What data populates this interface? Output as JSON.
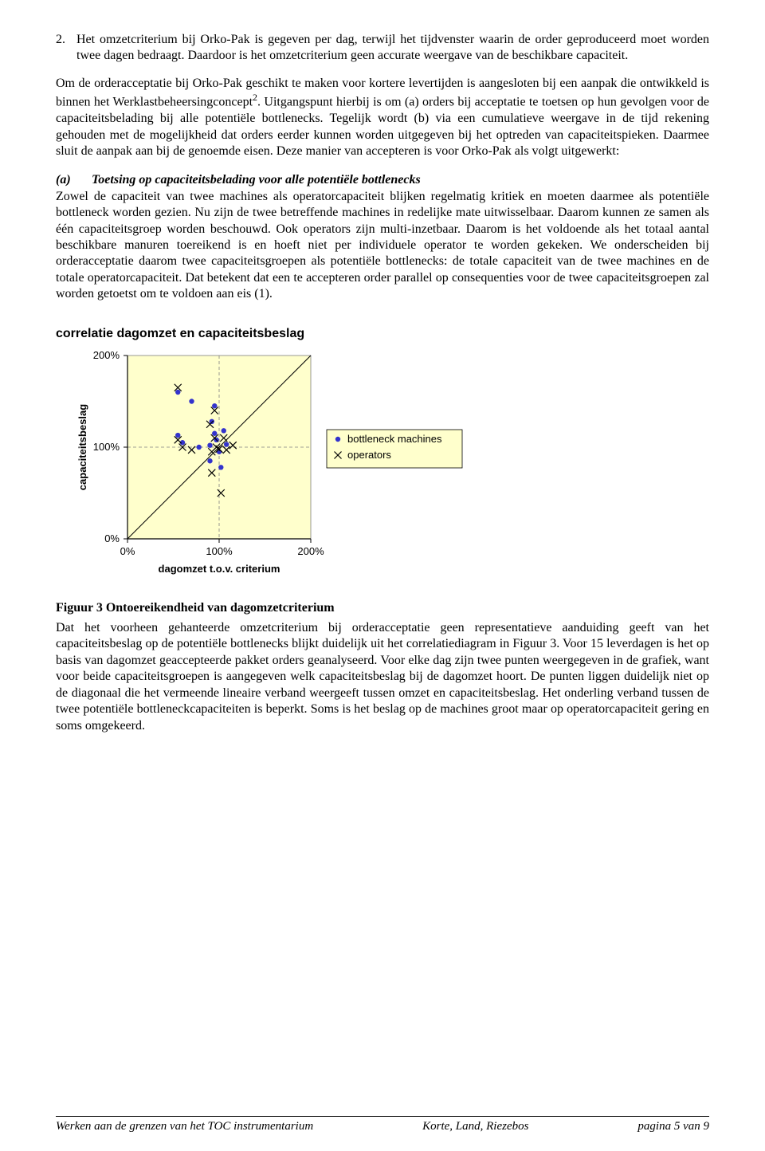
{
  "list_item_number": "2.",
  "list_item_text": "Het omzetcriterium bij Orko-Pak is gegeven per dag, terwijl het tijdvenster waarin de order geproduceerd moet worden twee dagen bedraagt. Daardoor is het omzetcriterium geen accurate weergave van de beschikbare capaciteit.",
  "para2_a": "Om de orderacceptatie bij Orko-Pak geschikt te maken voor kortere levertijden is aangesloten bij een aanpak die ontwikkeld is binnen het Werklastbeheersingconcept",
  "para2_sup": "2",
  "para2_b": ". Uitgangspunt hierbij is om (a) orders bij acceptatie te toetsen op hun gevolgen voor de capaciteitsbelading bij alle potentiële bottlenecks. Tegelijk wordt (b) via een cumulatieve weergave in de tijd rekening gehouden met de mogelijkheid dat orders eerder kunnen worden uitgegeven bij het optreden van capaciteitspieken. Daarmee sluit de aanpak aan bij de genoemde eisen. Deze manier van accepteren is voor Orko-Pak als volgt uitgewerkt:",
  "section_a_label": "(a)",
  "section_a_title": "Toetsing op capaciteitsbelading voor alle potentiële bottlenecks",
  "para3": "Zowel de capaciteit van twee machines als operatorcapaciteit blijken regelmatig kritiek en moeten daarmee als potentiële bottleneck worden gezien. Nu zijn de twee betreffende machines in redelijke mate uitwisselbaar. Daarom kunnen ze samen als één capaciteitsgroep worden beschouwd. Ook operators zijn multi-inzetbaar. Daarom is het voldoende als het totaal aantal beschikbare manuren toereikend is en hoeft niet per individuele operator te worden gekeken. We onderscheiden bij orderacceptatie daarom twee capaciteitsgroepen als potentiële bottlenecks: de totale capaciteit van de twee machines en de totale operatorcapaciteit. Dat betekent dat een te accepteren order parallel op consequenties voor de twee capaciteitsgroepen zal worden getoetst om te voldoen aan eis (1).",
  "chart": {
    "type": "scatter",
    "title": "correlatie dagomzet en capaciteitsbeslag",
    "xlabel": "dagomzet t.o.v. criterium",
    "ylabel": "capaciteitsbeslag",
    "xlim": [
      0,
      200
    ],
    "ylim": [
      0,
      200
    ],
    "xticks": [
      0,
      100,
      200
    ],
    "yticks": [
      0,
      100,
      200
    ],
    "xtick_labels": [
      "0%",
      "100%",
      "200%"
    ],
    "ytick_labels": [
      "0%",
      "100%",
      "200%"
    ],
    "plot_bg": "#ffffcc",
    "grid_color": "#808080",
    "axis_color": "#000000",
    "label_font": "Arial",
    "label_fontsize": 13,
    "tick_fontsize": 13,
    "ylabel_fontweight": "bold",
    "diagonal_line": {
      "x1": 0,
      "y1": 0,
      "x2": 200,
      "y2": 200,
      "color": "#000000",
      "width": 1
    },
    "legend": {
      "bg": "#ffffcc",
      "border": "#000000",
      "items": [
        {
          "marker": "dot",
          "color": "#3333cc",
          "label": "bottleneck machines"
        },
        {
          "marker": "x",
          "color": "#000000",
          "label": "operators"
        }
      ]
    },
    "series_machines_color": "#3333cc",
    "series_machines_marker": "dot",
    "series_machines_size": 3.2,
    "series_machines": [
      [
        55,
        160
      ],
      [
        70,
        150
      ],
      [
        95,
        145
      ],
      [
        55,
        113
      ],
      [
        60,
        105
      ],
      [
        78,
        100
      ],
      [
        92,
        128
      ],
      [
        95,
        115
      ],
      [
        90,
        102
      ],
      [
        97,
        108
      ],
      [
        100,
        95
      ],
      [
        105,
        118
      ],
      [
        108,
        103
      ],
      [
        90,
        85
      ],
      [
        102,
        78
      ]
    ],
    "series_operators_color": "#000000",
    "series_operators_marker": "x",
    "series_operators_size": 4.5,
    "series_operators": [
      [
        55,
        165
      ],
      [
        95,
        140
      ],
      [
        55,
        108
      ],
      [
        60,
        100
      ],
      [
        70,
        97
      ],
      [
        90,
        125
      ],
      [
        92,
        95
      ],
      [
        95,
        110
      ],
      [
        97,
        100
      ],
      [
        100,
        98
      ],
      [
        105,
        110
      ],
      [
        108,
        97
      ],
      [
        115,
        102
      ],
      [
        92,
        72
      ],
      [
        102,
        50
      ]
    ]
  },
  "figure_caption": "Figuur 3 Ontoereikendheid van dagomzetcriterium",
  "para4": "Dat het voorheen gehanteerde omzetcriterium bij orderacceptatie geen representatieve aanduiding geeft van het capaciteitsbeslag op de potentiële bottlenecks blijkt duidelijk uit het correlatiediagram in Figuur 3. Voor 15 leverdagen is het op basis van dagomzet geaccepteerde pakket orders geanalyseerd. Voor elke dag zijn twee punten weergegeven in de grafiek, want voor beide capaciteitsgroepen is aangegeven welk capaciteitsbeslag bij de dagomzet hoort. De punten liggen duidelijk niet op de diagonaal die het vermeende lineaire verband weergeeft tussen omzet en capaciteitsbeslag. Het onderling verband tussen de twee potentiële bottleneckcapaciteiten is beperkt. Soms is het beslag op de machines groot maar op operatorcapaciteit gering en soms omgekeerd.",
  "footer_left": "Werken aan de grenzen van het TOC instrumentarium",
  "footer_center": "Korte, Land, Riezebos",
  "footer_right": "pagina 5 van 9"
}
